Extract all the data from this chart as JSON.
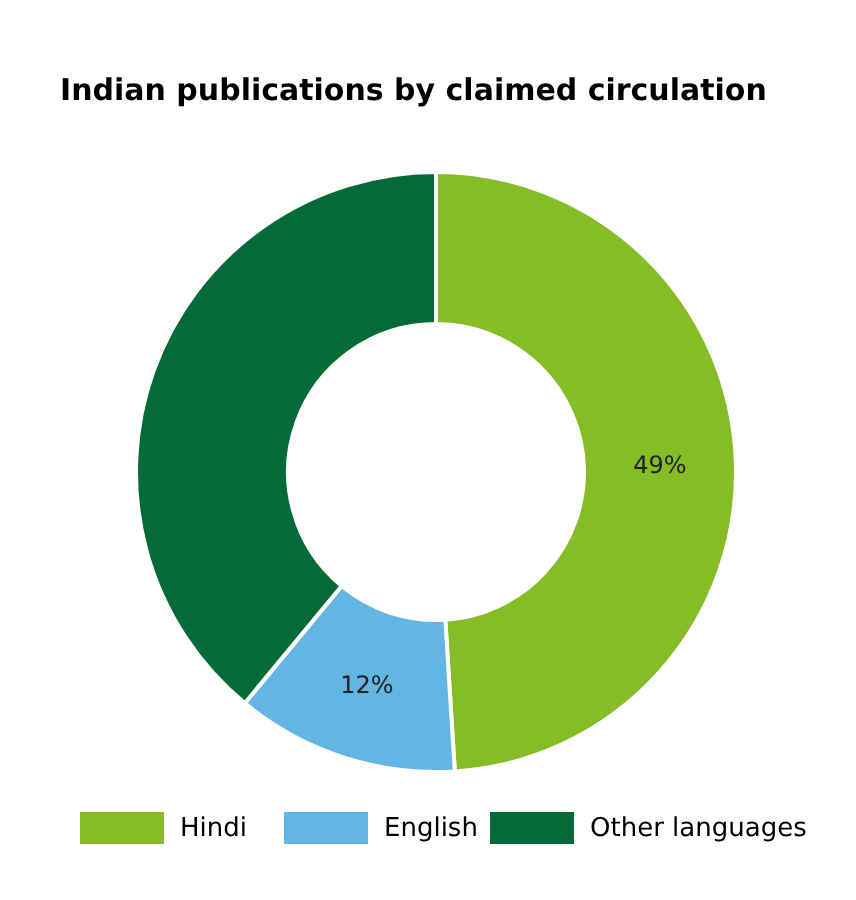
{
  "chart_data": {
    "type": "donut",
    "title": "Indian publications by claimed circulation",
    "categories": [
      "Hindi",
      "English",
      "Other languages"
    ],
    "values": [
      49,
      12,
      39
    ],
    "colors": [
      "#86bc25",
      "#62b5e5",
      "#046a38"
    ],
    "value_labels": [
      "49%",
      "12%",
      null
    ],
    "legend": "bottom"
  }
}
